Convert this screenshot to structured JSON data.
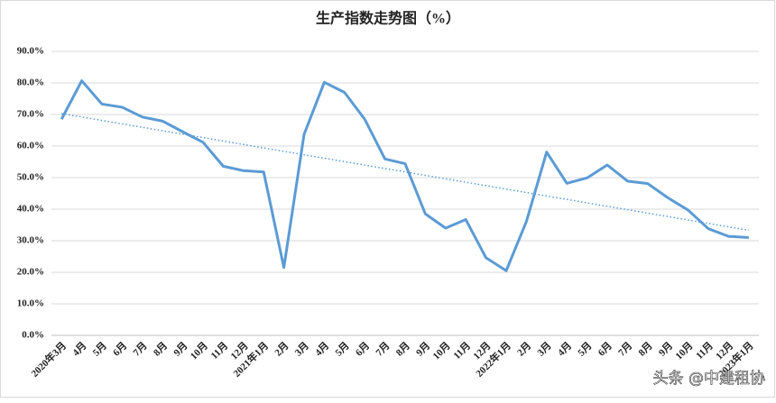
{
  "chart_data": {
    "type": "line",
    "title": "生产指数走势图（%）",
    "categories": [
      "2020年3月",
      "4月",
      "5月",
      "6月",
      "7月",
      "8月",
      "9月",
      "10月",
      "11月",
      "12月",
      "2021年1月",
      "2月",
      "3月",
      "4月",
      "5月",
      "6月",
      "7月",
      "8月",
      "9月",
      "10月",
      "11月",
      "12月",
      "2022年1月",
      "2月",
      "3月",
      "4月",
      "5月",
      "6月",
      "7月",
      "8月",
      "9月",
      "10月",
      "11月",
      "12月",
      "2023年1月"
    ],
    "values": [
      68.5,
      80.7,
      73.3,
      72.3,
      69.2,
      67.9,
      64.5,
      61.2,
      53.6,
      52.2,
      51.8,
      21.5,
      63.7,
      80.2,
      77.0,
      68.5,
      55.9,
      54.4,
      38.5,
      34.0,
      36.7,
      24.6,
      20.5,
      36.1,
      58.1,
      48.2,
      49.9,
      54.0,
      48.9,
      48.1,
      43.6,
      39.7,
      33.8,
      31.4,
      31.0
    ],
    "color": "#5b9bd5",
    "trendline": {
      "start": 70.3,
      "end": 33.3,
      "color": "#5b9bd5",
      "style": "dotted"
    },
    "ylim": [
      0,
      90
    ],
    "yticks": [
      {
        "value": 0,
        "label": "0.0%"
      },
      {
        "value": 10,
        "label": "10.0%"
      },
      {
        "value": 20,
        "label": "20.0%"
      },
      {
        "value": 30,
        "label": "30.0%"
      },
      {
        "value": 40,
        "label": "40.0%"
      },
      {
        "value": 50,
        "label": "50.0%"
      },
      {
        "value": 60,
        "label": "60.0%"
      },
      {
        "value": 70,
        "label": "70.0%"
      },
      {
        "value": 80,
        "label": "80.0%"
      },
      {
        "value": 90,
        "label": "90.0%"
      }
    ],
    "grid": true
  },
  "watermark": "头条 @中建租协"
}
